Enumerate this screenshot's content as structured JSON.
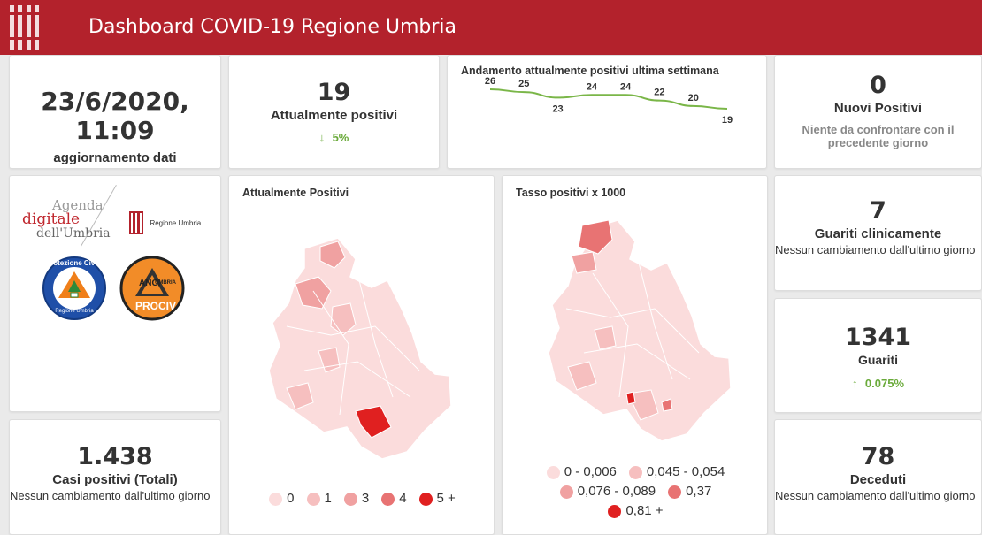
{
  "header": {
    "title": "Dashboard COVID-19 Regione Umbria"
  },
  "update": {
    "datetime": "23/6/2020, 11:09",
    "label": "aggiornamento dati"
  },
  "positives": {
    "value": "19",
    "label": "Attualmente positivi",
    "change_text": "5%",
    "direction": "down",
    "color": "#6aaa3a"
  },
  "trend": {
    "title": "Andamento attualmente positivi ultima settimana",
    "values": [
      26,
      25,
      23,
      24,
      24,
      22,
      20,
      19
    ],
    "labels": [
      "26",
      "25",
      "23",
      "24",
      "24",
      "22",
      "20",
      "19"
    ],
    "line_color": "#7ab648"
  },
  "new_positives": {
    "value": "0",
    "label": "Nuovi Positivi",
    "note": "Niente da confrontare con il precedente giorno"
  },
  "logos": {
    "agenda": [
      "Agenda",
      "digitale",
      "dell'Umbria"
    ],
    "regione": "Regione Umbria",
    "protezione": [
      "Protezione Civile",
      "Regione Umbria"
    ],
    "anci": [
      "ANCI",
      "UMBRIA",
      "PROCIV"
    ]
  },
  "map_positivi": {
    "title": "Attualmente Positivi",
    "legend": [
      {
        "label": "0",
        "color": "#fbdcdc"
      },
      {
        "label": "1",
        "color": "#f6bfbf"
      },
      {
        "label": "3",
        "color": "#f0a1a1"
      },
      {
        "label": "4",
        "color": "#e87373"
      },
      {
        "label": "5 +",
        "color": "#e02020"
      }
    ]
  },
  "map_tasso": {
    "title": "Tasso positivi x 1000",
    "legend": [
      {
        "label": "0 - 0,006",
        "color": "#fbdcdc"
      },
      {
        "label": "0,045 - 0,054",
        "color": "#f6bfbf"
      },
      {
        "label": "0,076 - 0,089",
        "color": "#f0a1a1"
      },
      {
        "label": "0,37",
        "color": "#e87373"
      },
      {
        "label": "0,81 +",
        "color": "#e02020"
      }
    ]
  },
  "guariti_clinicamente": {
    "value": "7",
    "label": "Guariti clinicamente",
    "note": "Nessun cambiamento dall'ultimo giorno"
  },
  "guariti": {
    "value": "1341",
    "label": "Guariti",
    "change_text": "0.075%",
    "direction": "up",
    "color": "#6aaa3a"
  },
  "casi_totali": {
    "value": "1.438",
    "label": "Casi positivi (Totali)",
    "note": "Nessun cambiamento dall'ultimo giorno"
  },
  "deceduti": {
    "value": "78",
    "label": "Deceduti",
    "note": "Nessun cambiamento dall'ultimo giorno"
  }
}
